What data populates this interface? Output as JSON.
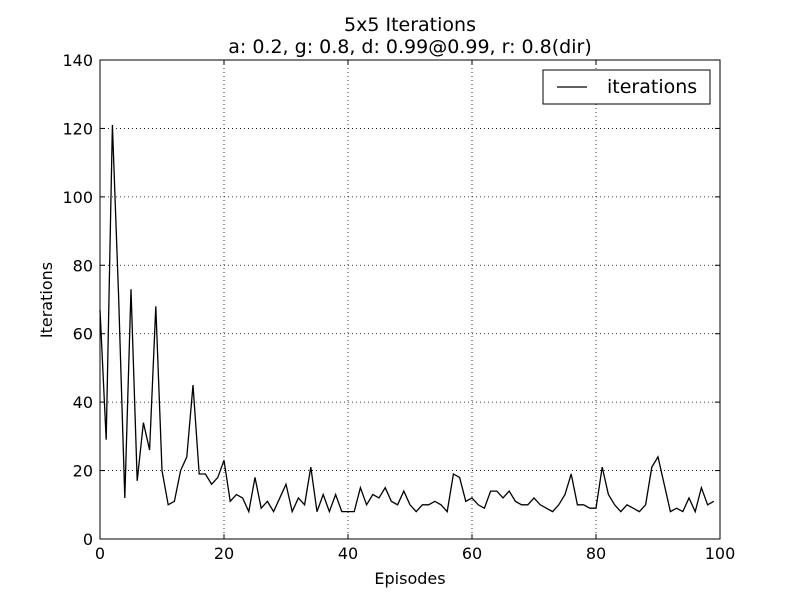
{
  "chart_data": {
    "type": "line",
    "title": "5x5 Iterations",
    "subtitle": "a: 0.2, g: 0.8, d: 0.99@0.99, r: 0.8(dir)",
    "xlabel": "Episodes",
    "ylabel": "Iterations",
    "xlim": [
      0,
      100
    ],
    "ylim": [
      0,
      140
    ],
    "xticks": [
      0,
      20,
      40,
      60,
      80,
      100
    ],
    "yticks": [
      0,
      20,
      40,
      60,
      80,
      100,
      120,
      140
    ],
    "grid": true,
    "legend_position": "top-right",
    "series": [
      {
        "name": "iterations",
        "color": "#000000",
        "x": [
          0,
          1,
          2,
          3,
          4,
          5,
          6,
          7,
          8,
          9,
          10,
          11,
          12,
          13,
          14,
          15,
          16,
          17,
          18,
          19,
          20,
          21,
          22,
          23,
          24,
          25,
          26,
          27,
          28,
          29,
          30,
          31,
          32,
          33,
          34,
          35,
          36,
          37,
          38,
          39,
          40,
          41,
          42,
          43,
          44,
          45,
          46,
          47,
          48,
          49,
          50,
          51,
          52,
          53,
          54,
          55,
          56,
          57,
          58,
          59,
          60,
          61,
          62,
          63,
          64,
          65,
          66,
          67,
          68,
          69,
          70,
          71,
          72,
          73,
          74,
          75,
          76,
          77,
          78,
          79,
          80,
          81,
          82,
          83,
          84,
          85,
          86,
          87,
          88,
          89,
          90,
          91,
          92,
          93,
          94,
          95,
          96,
          97,
          98,
          99
        ],
        "values": [
          67,
          29,
          121,
          71,
          12,
          73,
          17,
          34,
          26,
          68,
          20,
          10,
          11,
          20,
          24,
          45,
          19,
          19,
          16,
          18,
          23,
          11,
          13,
          12,
          8,
          18,
          9,
          11,
          8,
          12,
          16,
          8,
          12,
          10,
          21,
          8,
          13,
          8,
          13,
          8,
          8,
          8,
          15,
          10,
          13,
          12,
          15,
          11,
          10,
          14,
          10,
          8,
          10,
          10,
          11,
          10,
          8,
          19,
          18,
          11,
          12,
          10,
          9,
          14,
          14,
          12,
          14,
          11,
          10,
          10,
          12,
          10,
          9,
          8,
          10,
          13,
          19,
          10,
          10,
          9,
          9,
          21,
          13,
          10,
          8,
          10,
          9,
          8,
          10,
          21,
          24,
          16,
          8,
          9,
          8,
          12,
          8,
          15,
          10,
          11
        ]
      }
    ]
  }
}
